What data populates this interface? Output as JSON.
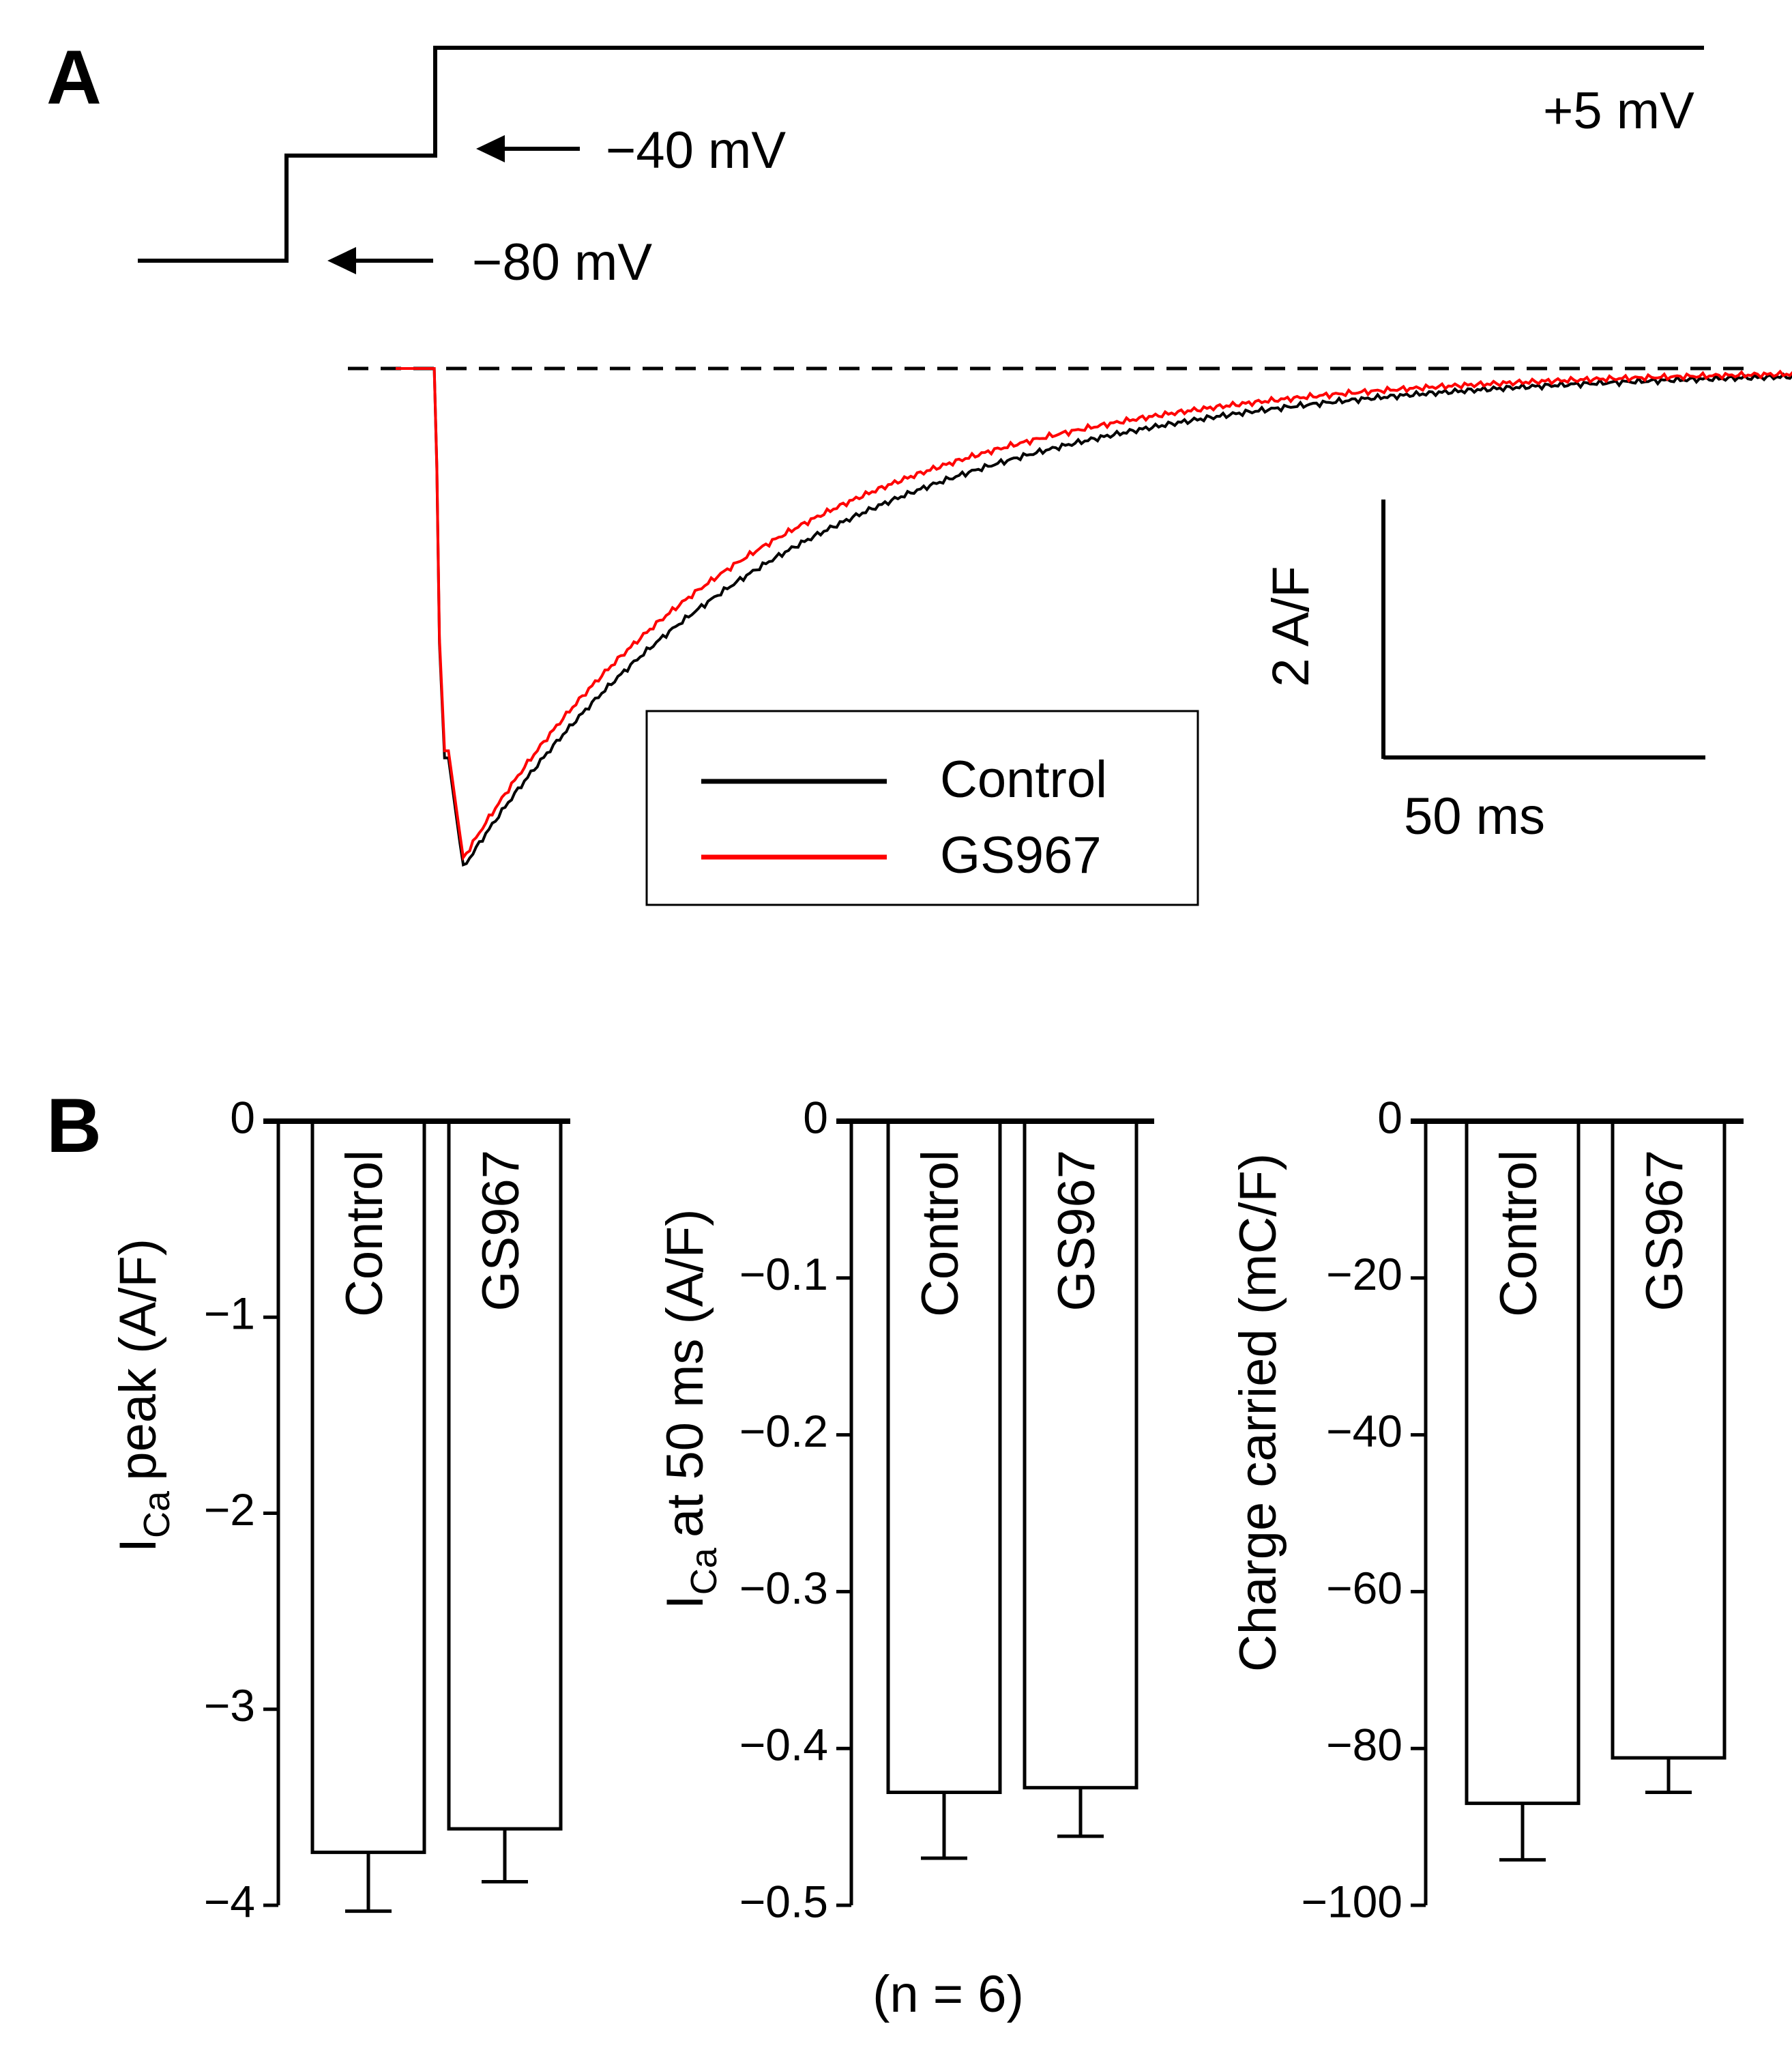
{
  "panel_a": {
    "label": "A",
    "protocol": {
      "holding_label": "−80 mV",
      "prepulse_label": "−40 mV",
      "test_label": "+5 mV"
    },
    "legend": [
      "Control",
      "GS967"
    ],
    "scalebar": {
      "y_label": "2 A/F",
      "x_label": "50 ms"
    },
    "colors": {
      "control": "#000000",
      "gs967": "#ff0000"
    }
  },
  "panel_b": {
    "label": "B",
    "footnote": "(n = 6)"
  },
  "chart_data": [
    {
      "type": "line",
      "title": "",
      "xlabel": "",
      "ylabel": "",
      "x_unit": "ms",
      "y_unit": "A/F",
      "scale": {
        "x": "50 ms",
        "y": "2 A/F"
      },
      "series": [
        {
          "name": "Control",
          "color": "#000000",
          "peak": -3.85,
          "tau_ms": 50,
          "t_peak_ms": 4.5
        },
        {
          "name": "GS967",
          "color": "#ff0000",
          "peak": -3.78,
          "tau_ms": 46,
          "t_peak_ms": 4.5
        }
      ],
      "baseline": 0,
      "duration_ms": 250
    },
    {
      "type": "bar",
      "ylabel": "peak (A/F)",
      "ylabel_symbol": "I",
      "ylabel_sub": "Ca",
      "categories": [
        "Control",
        "GS967"
      ],
      "values": [
        -3.73,
        -3.61
      ],
      "errors": [
        0.3,
        0.27
      ],
      "ylim": [
        -4,
        0
      ],
      "yticks": [
        0,
        -1,
        -2,
        -3,
        -4
      ],
      "ytick_labels": [
        "0",
        "−1",
        "−2",
        "−3",
        "−4"
      ]
    },
    {
      "type": "bar",
      "ylabel": "at 50 ms (A/F)",
      "ylabel_symbol": "I",
      "ylabel_sub": "Ca",
      "categories": [
        "Control",
        "GS967"
      ],
      "values": [
        -0.428,
        -0.425
      ],
      "errors": [
        0.042,
        0.031
      ],
      "ylim": [
        -0.5,
        0
      ],
      "yticks": [
        0,
        -0.1,
        -0.2,
        -0.3,
        -0.4,
        -0.5
      ],
      "ytick_labels": [
        "0",
        "−0.1",
        "−0.2",
        "−0.3",
        "−0.4",
        "−0.5"
      ]
    },
    {
      "type": "bar",
      "ylabel": "Charge carried (mC/F)",
      "categories": [
        "Control",
        "GS967"
      ],
      "values": [
        -87.0,
        -81.2
      ],
      "errors": [
        7.2,
        4.4
      ],
      "ylim": [
        -100,
        0
      ],
      "yticks": [
        0,
        -20,
        -40,
        -60,
        -80,
        -100
      ],
      "ytick_labels": [
        "0",
        "−20",
        "−40",
        "−60",
        "−80",
        "−100"
      ]
    }
  ]
}
